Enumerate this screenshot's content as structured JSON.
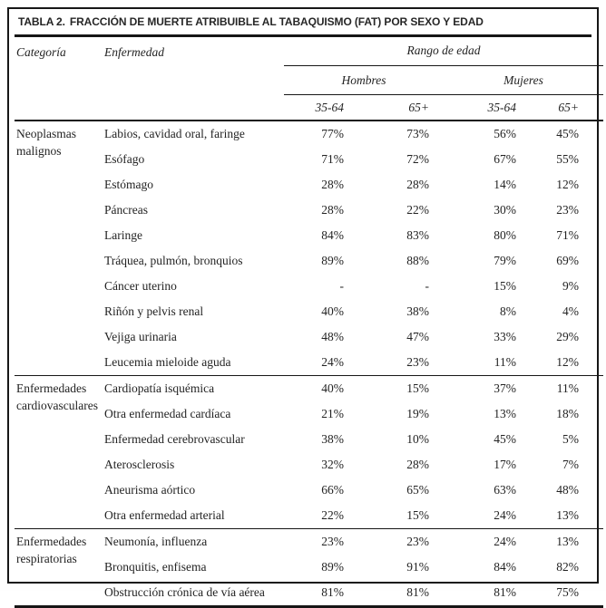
{
  "title": {
    "prefix": "TABLA 2.",
    "rest": "FRACCIÓN DE MUERTE ATRIBUIBLE AL TABAQUISMO (FAT) POR SEXO Y EDAD"
  },
  "columns": {
    "categoria": "Categoría",
    "enfermedad": "Enfermedad",
    "age_range_label": "Rango de edad",
    "sex_groups": [
      "Hombres",
      "Mujeres"
    ],
    "age_headers": [
      "35-64",
      "65+",
      "35-64",
      "65+"
    ]
  },
  "sections": [
    {
      "category": "Neoplasmas malignos",
      "rows": [
        {
          "disease": "Labios, cavidad oral, faringe",
          "values": [
            "77%",
            "73%",
            "56%",
            "45%"
          ]
        },
        {
          "disease": "Esófago",
          "values": [
            "71%",
            "72%",
            "67%",
            "55%"
          ]
        },
        {
          "disease": "Estómago",
          "values": [
            "28%",
            "28%",
            "14%",
            "12%"
          ]
        },
        {
          "disease": "Páncreas",
          "values": [
            "28%",
            "22%",
            "30%",
            "23%"
          ]
        },
        {
          "disease": "Laringe",
          "values": [
            "84%",
            "83%",
            "80%",
            "71%"
          ]
        },
        {
          "disease": "Tráquea, pulmón, bronquios",
          "values": [
            "89%",
            "88%",
            "79%",
            "69%"
          ]
        },
        {
          "disease": "Cáncer uterino",
          "values": [
            "-",
            "-",
            "15%",
            "9%"
          ]
        },
        {
          "disease": "Riñón y pelvis renal",
          "values": [
            "40%",
            "38%",
            "8%",
            "4%"
          ]
        },
        {
          "disease": "Vejiga urinaria",
          "values": [
            "48%",
            "47%",
            "33%",
            "29%"
          ]
        },
        {
          "disease": "Leucemia mieloide aguda",
          "values": [
            "24%",
            "23%",
            "11%",
            "12%"
          ]
        }
      ]
    },
    {
      "category": "Enfermedades cardiovasculares",
      "rows": [
        {
          "disease": "Cardiopatía isquémica",
          "values": [
            "40%",
            "15%",
            "37%",
            "11%"
          ]
        },
        {
          "disease": "Otra enfermedad cardíaca",
          "values": [
            "21%",
            "19%",
            "13%",
            "18%"
          ]
        },
        {
          "disease": "Enfermedad cerebrovascular",
          "values": [
            "38%",
            "10%",
            "45%",
            "5%"
          ]
        },
        {
          "disease": "Aterosclerosis",
          "values": [
            "32%",
            "28%",
            "17%",
            "7%"
          ]
        },
        {
          "disease": "Aneurisma aórtico",
          "values": [
            "66%",
            "65%",
            "63%",
            "48%"
          ]
        },
        {
          "disease": "Otra enfermedad arterial",
          "values": [
            "22%",
            "15%",
            "24%",
            "13%"
          ]
        }
      ]
    },
    {
      "category": "Enfermedades respiratorias",
      "rows": [
        {
          "disease": "Neumonía, influenza",
          "values": [
            "23%",
            "23%",
            "24%",
            "13%"
          ]
        },
        {
          "disease": "Bronquitis, enfisema",
          "values": [
            "89%",
            "91%",
            "84%",
            "82%"
          ]
        },
        {
          "disease": "Obstrucción crónica de vía aérea",
          "values": [
            "81%",
            "81%",
            "81%",
            "75%"
          ]
        }
      ]
    }
  ],
  "colors": {
    "text": "#232323",
    "rule": "#161616",
    "background": "#ffffff"
  }
}
